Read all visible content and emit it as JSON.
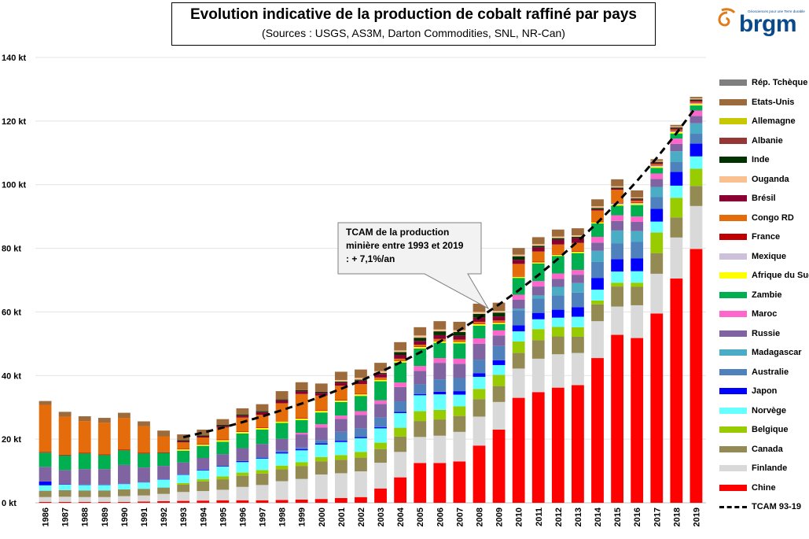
{
  "header": {
    "title": "Evolution indicative de la production de cobalt raffiné par pays",
    "subtitle": "(Sources : USGS, AS3M, Darton Commodities, SNL, NR-Can)"
  },
  "logo": {
    "text": "brgm",
    "tagline": "Géosciences pour une Terre durable",
    "icon": "brgm-swirl-icon",
    "color": "#e07b1a"
  },
  "callout": {
    "lines": [
      "TCAM de la production",
      "minière entre 1993 et 2019",
      ": + 7,1%/an"
    ]
  },
  "legend": {
    "items": [
      {
        "label": "Rép. Tchèque",
        "color": "#7f7f7f"
      },
      {
        "label": "Etats-Unis",
        "color": "#9c6a3b"
      },
      {
        "label": "Allemagne",
        "color": "#c8c800"
      },
      {
        "label": "Albanie",
        "color": "#953735"
      },
      {
        "label": "Inde",
        "color": "#003300"
      },
      {
        "label": "Ouganda",
        "color": "#fac090"
      },
      {
        "label": "Brésil",
        "color": "#8b0033"
      },
      {
        "label": "Congo RD",
        "color": "#e46c0a"
      },
      {
        "label": "France",
        "color": "#c00000"
      },
      {
        "label": "Mexique",
        "color": "#ccc0da"
      },
      {
        "label": "Afrique du Sud",
        "color": "#ffff00"
      },
      {
        "label": "Zambie",
        "color": "#00b050"
      },
      {
        "label": "Maroc",
        "color": "#ff66cc"
      },
      {
        "label": "Russie",
        "color": "#8064a2"
      },
      {
        "label": "Madagascar",
        "color": "#4bacc6"
      },
      {
        "label": "Australie",
        "color": "#4f81bd"
      },
      {
        "label": "Japon",
        "color": "#0000ff"
      },
      {
        "label": "Norvège",
        "color": "#66ffff"
      },
      {
        "label": "Belgique",
        "color": "#99cc00"
      },
      {
        "label": "Canada",
        "color": "#948a54"
      },
      {
        "label": "Finlande",
        "color": "#d9d9d9"
      },
      {
        "label": "Chine",
        "color": "#ff0000"
      }
    ],
    "trend_label": "TCAM 93-19"
  },
  "chart_data": {
    "type": "bar",
    "stacked": true,
    "title": "Evolution indicative de la production de cobalt raffiné par pays",
    "ylim": [
      0,
      140
    ],
    "yticks": [
      0,
      20,
      40,
      60,
      80,
      100,
      120,
      140
    ],
    "ytick_labels": [
      "0 kt",
      "20 kt",
      "40 kt",
      "60 kt",
      "80 kt",
      "100 kt",
      "120 kt",
      "140 kt"
    ],
    "grid": true,
    "legend_position": "right",
    "categories": [
      "1986",
      "1987",
      "1988",
      "1989",
      "1990",
      "1991",
      "1992",
      "1993",
      "1994",
      "1995",
      "1996",
      "1997",
      "1998",
      "1999",
      "2000",
      "2001",
      "2002",
      "2003",
      "2004",
      "2005",
      "2006",
      "2007",
      "2008",
      "2009",
      "2010",
      "2011",
      "2012",
      "2013",
      "2014",
      "2015",
      "2016",
      "2017",
      "2018",
      "2019"
    ],
    "series": [
      {
        "name": "Chine",
        "color": "#ff0000",
        "values": [
          0.3,
          0.3,
          0.3,
          0.3,
          0.3,
          0.4,
          0.5,
          0.6,
          0.7,
          0.8,
          0.8,
          0.8,
          0.9,
          1.0,
          1.2,
          1.5,
          1.8,
          4.5,
          8.0,
          12.5,
          12.5,
          13.0,
          18.0,
          23.0,
          33.0,
          34.8,
          36.2,
          37.0,
          45.5,
          52.8,
          51.8,
          59.5,
          70.5,
          79.8
        ]
      },
      {
        "name": "Finlande",
        "color": "#d9d9d9",
        "values": [
          1.5,
          1.6,
          1.5,
          1.5,
          1.8,
          1.9,
          2.3,
          2.8,
          3.0,
          3.3,
          4.2,
          4.8,
          5.9,
          6.5,
          7.7,
          7.8,
          8.1,
          8.1,
          8.0,
          8.2,
          8.6,
          9.3,
          9.1,
          8.7,
          9.2,
          10.5,
          10.5,
          10.1,
          11.6,
          8.9,
          10.3,
          12.5,
          12.9,
          13.5
        ]
      },
      {
        "name": "Canada",
        "color": "#948a54",
        "values": [
          2.0,
          2.1,
          2.1,
          2.1,
          2.1,
          2.1,
          2.0,
          2.3,
          3.0,
          3.3,
          3.5,
          3.6,
          3.7,
          4.0,
          4.1,
          4.2,
          4.3,
          4.3,
          4.8,
          5.0,
          5.1,
          5.0,
          5.5,
          5.0,
          4.9,
          5.8,
          5.6,
          5.1,
          5.3,
          6.3,
          5.8,
          6.5,
          6.3,
          6.3
        ]
      },
      {
        "name": "Belgique",
        "color": "#99cc00",
        "values": [
          0.0,
          0.0,
          0.0,
          0.0,
          0.0,
          0.0,
          0.0,
          0.5,
          0.7,
          0.9,
          1.0,
          1.1,
          1.2,
          1.3,
          1.4,
          1.5,
          1.8,
          2.0,
          2.8,
          3.1,
          3.0,
          3.0,
          3.2,
          3.5,
          3.6,
          3.5,
          3.0,
          3.0,
          1.2,
          1.2,
          1.3,
          6.5,
          6.2,
          5.4
        ]
      },
      {
        "name": "Norvège",
        "color": "#66ffff",
        "values": [
          1.7,
          1.7,
          1.7,
          1.7,
          1.7,
          2.0,
          2.5,
          2.6,
          2.8,
          3.1,
          3.3,
          3.6,
          3.8,
          3.7,
          3.9,
          4.1,
          4.3,
          4.5,
          4.6,
          5.0,
          4.9,
          3.7,
          3.8,
          3.1,
          3.2,
          3.1,
          2.9,
          3.3,
          3.4,
          3.5,
          3.6,
          3.4,
          3.8,
          3.9
        ]
      },
      {
        "name": "Japon",
        "color": "#0000ff",
        "values": [
          1.2,
          0.1,
          0.1,
          0.1,
          0.1,
          0.1,
          0.1,
          0.1,
          0.2,
          0.2,
          0.3,
          0.3,
          0.4,
          0.4,
          0.4,
          0.4,
          0.4,
          0.4,
          0.4,
          0.4,
          0.8,
          1.1,
          1.1,
          1.5,
          1.9,
          2.0,
          2.5,
          3.0,
          3.7,
          3.9,
          4.0,
          4.0,
          4.3,
          4.0
        ]
      },
      {
        "name": "Australie",
        "color": "#4f81bd",
        "values": [
          0.0,
          0.0,
          0.0,
          0.0,
          0.0,
          0.0,
          0.0,
          0.0,
          0.0,
          0.0,
          0.1,
          0.1,
          0.5,
          0.5,
          1.0,
          2.8,
          2.7,
          3.0,
          3.3,
          3.0,
          3.9,
          4.1,
          4.3,
          4.5,
          4.7,
          4.5,
          4.5,
          4.6,
          5.0,
          5.0,
          5.2,
          3.7,
          3.1,
          3.1
        ]
      },
      {
        "name": "Madagascar",
        "color": "#4bacc6",
        "values": [
          0,
          0,
          0,
          0,
          0,
          0,
          0,
          0,
          0,
          0,
          0,
          0,
          0,
          0,
          0,
          0,
          0,
          0,
          0,
          0,
          0,
          0,
          0,
          0,
          0.5,
          1.0,
          2.7,
          3.0,
          3.5,
          4.0,
          3.4,
          3.2,
          3.4,
          3.3
        ]
      },
      {
        "name": "Russie",
        "color": "#8064a2",
        "values": [
          4.6,
          4.5,
          4.9,
          4.9,
          5.9,
          4.6,
          4.2,
          3.8,
          3.7,
          3.7,
          4.0,
          4.2,
          3.7,
          4.1,
          4.0,
          4.1,
          4.2,
          4.3,
          4.5,
          4.3,
          5.2,
          4.5,
          5.0,
          3.3,
          2.9,
          2.8,
          2.5,
          2.6,
          2.6,
          3.0,
          2.9,
          2.5,
          2.3,
          2.3
        ]
      },
      {
        "name": "Maroc",
        "color": "#ff66cc",
        "values": [
          0,
          0,
          0,
          0,
          0,
          0,
          0,
          0,
          0,
          0,
          0,
          0,
          0,
          0.5,
          1.0,
          1.0,
          1.2,
          1.1,
          1.4,
          1.5,
          1.5,
          1.6,
          1.7,
          1.6,
          1.5,
          1.7,
          1.7,
          1.5,
          1.8,
          1.8,
          1.7,
          1.7,
          1.7,
          1.7
        ]
      },
      {
        "name": "Zambie",
        "color": "#00b050",
        "values": [
          4.5,
          4.6,
          4.9,
          4.4,
          4.6,
          4.4,
          4.1,
          3.7,
          3.8,
          3.9,
          4.6,
          4.5,
          5.0,
          4.0,
          3.7,
          4.3,
          4.8,
          6.0,
          6.3,
          5.5,
          4.8,
          4.8,
          4.0,
          2.0,
          5.3,
          5.5,
          5.5,
          5.3,
          4.2,
          3.0,
          3.6,
          1.8,
          1.6,
          1.6
        ]
      },
      {
        "name": "Afrique du Sud",
        "color": "#ffff00",
        "values": [
          0,
          0,
          0,
          0,
          0,
          0,
          0,
          0.4,
          0.4,
          0.5,
          0.5,
          0.5,
          0.5,
          0.5,
          0.5,
          0.5,
          0.5,
          0.5,
          0.5,
          0.5,
          0.5,
          0.5,
          0.5,
          0.4,
          0.4,
          0.4,
          0.4,
          0.4,
          0.4,
          0.4,
          0.4,
          0.4,
          0.4,
          0.4
        ]
      },
      {
        "name": "Mexique",
        "color": "#ccc0da",
        "values": [
          0,
          0,
          0,
          0,
          0,
          0,
          0,
          0,
          0,
          0,
          0,
          0,
          0,
          0,
          0,
          0,
          0,
          0,
          0,
          0,
          0,
          0,
          0,
          0,
          0,
          0,
          0,
          0,
          0,
          0.3,
          0.3,
          0.3,
          0.3,
          0.3
        ]
      },
      {
        "name": "France",
        "color": "#c00000",
        "values": [
          0.2,
          0.2,
          0.2,
          0.2,
          0.2,
          0.2,
          0.2,
          0.2,
          0.2,
          0.2,
          0.2,
          0.2,
          0.2,
          0.2,
          0.2,
          0.2,
          0.2,
          0.2,
          0.2,
          0.2,
          0.2,
          0.2,
          0.2,
          0.2,
          0.2,
          0.2,
          0.2,
          0.2,
          0.2,
          0.2,
          0.2,
          0.2,
          0.2,
          0.2
        ]
      },
      {
        "name": "Congo RD",
        "color": "#e46c0a",
        "values": [
          14.8,
          12.0,
          10.0,
          10.0,
          10.0,
          8.4,
          5.0,
          2.0,
          2.0,
          3.8,
          4.3,
          4.0,
          5.5,
          7.5,
          4.6,
          4.4,
          3.0,
          0.5,
          0.5,
          0.5,
          0.5,
          0.5,
          0.5,
          0.5,
          3.8,
          3.2,
          3.0,
          2.6,
          3.5,
          4.1,
          0.5,
          0.3,
          0.3,
          0.3
        ]
      },
      {
        "name": "Brésil",
        "color": "#8b0033",
        "values": [
          0,
          0,
          0,
          0,
          0,
          0,
          0,
          0.4,
          0.4,
          0.5,
          0.6,
          0.8,
          0.9,
          0.9,
          0.9,
          1.0,
          1.1,
          1.1,
          1.2,
          1.2,
          1.2,
          1.2,
          1.3,
          1.3,
          1.3,
          1.3,
          1.5,
          1.5,
          0.4,
          0.4,
          0.4,
          0.4,
          0.4,
          0.4
        ]
      },
      {
        "name": "Inde",
        "color": "#003300",
        "values": [
          0,
          0,
          0,
          0,
          0,
          0,
          0,
          0.3,
          0.3,
          0.3,
          0.3,
          0.3,
          0.3,
          0.3,
          0.3,
          0.3,
          0.3,
          0.3,
          0.9,
          1.0,
          1.2,
          1.2,
          1.2,
          1.2,
          1.1,
          0.5,
          0.5,
          0.4,
          0.4,
          0.3,
          0.3,
          0.3,
          0.3,
          0.3
        ]
      },
      {
        "name": "Ouganda",
        "color": "#fac090",
        "values": [
          0,
          0,
          0,
          0,
          0,
          0,
          0,
          0,
          0,
          0,
          0,
          0,
          0,
          0,
          0,
          0.5,
          0.6,
          0.6,
          0.5,
          0.7,
          0.6,
          0.6,
          0.6,
          0.5,
          0.5,
          0.5,
          0.5,
          0.5,
          0.5,
          0.4,
          0.3,
          0.3,
          0.3,
          0.3
        ]
      },
      {
        "name": "Albanie",
        "color": "#953735",
        "values": [
          0,
          0,
          0,
          0,
          0,
          0,
          0,
          0,
          0,
          0,
          0,
          0,
          0,
          0,
          0,
          0,
          0,
          0,
          0,
          0,
          0,
          0,
          0,
          0,
          0,
          0,
          0,
          0,
          0,
          0,
          0,
          0,
          0,
          0
        ]
      },
      {
        "name": "Allemagne",
        "color": "#c8c800",
        "values": [
          0,
          0,
          0,
          0,
          0,
          0,
          0,
          0,
          0,
          0,
          0,
          0,
          0,
          0,
          0,
          0,
          0,
          0,
          0,
          0,
          0,
          0,
          0,
          0,
          0,
          0,
          0,
          0,
          0,
          0,
          0,
          0,
          0,
          0
        ]
      },
      {
        "name": "Etats-Unis",
        "color": "#9c6a3b",
        "values": [
          1.2,
          1.5,
          1.5,
          1.5,
          1.6,
          1.5,
          1.8,
          1.8,
          1.8,
          1.8,
          2.0,
          2.2,
          2.6,
          2.5,
          2.6,
          2.6,
          2.6,
          2.6,
          2.6,
          2.6,
          2.6,
          2.6,
          2.6,
          2.6,
          2.1,
          2.2,
          2.2,
          2.2,
          2.2,
          2.2,
          2.2,
          0.5,
          0.5,
          0.5
        ]
      },
      {
        "name": "Rép. Tchèque",
        "color": "#7f7f7f",
        "values": [
          0,
          0,
          0,
          0,
          0,
          0,
          0,
          0,
          0,
          0,
          0,
          0,
          0,
          0,
          0,
          0,
          0,
          0,
          0,
          0,
          0,
          0,
          0,
          0,
          0,
          0,
          0,
          0,
          0,
          0,
          0,
          0,
          0,
          0
        ]
      }
    ],
    "trend": {
      "name": "TCAM 93-19",
      "style": "dashed",
      "color": "#000000",
      "x": [
        "1993",
        "2019"
      ],
      "values": [
        20.6,
        124.5
      ],
      "cagr_percent": 7.1
    }
  }
}
